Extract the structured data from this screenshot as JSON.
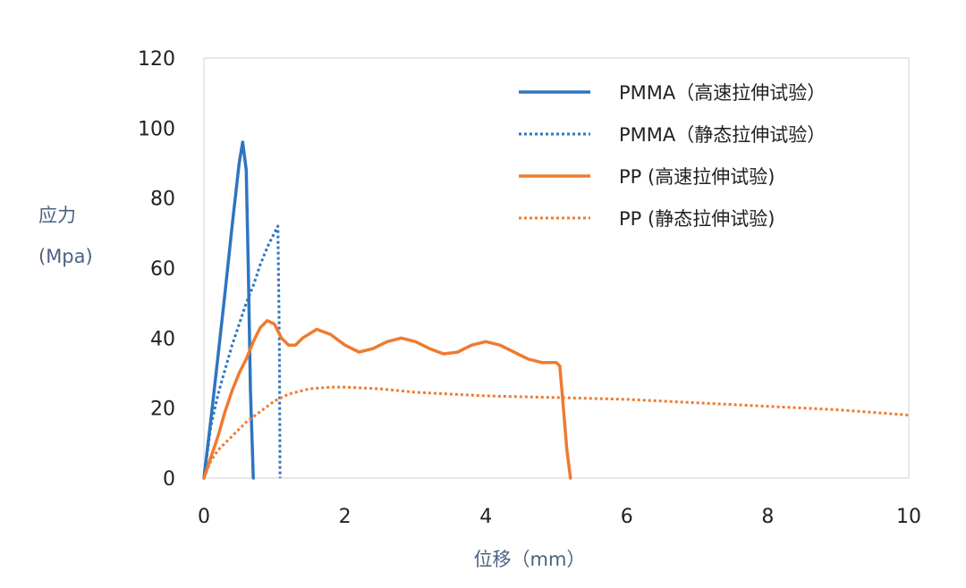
{
  "chart_data": {
    "type": "line",
    "ylabel_line1": "应力",
    "ylabel_line2": "(Mpa)",
    "xlabel": "位移（mm）",
    "xlim": [
      0,
      10
    ],
    "ylim": [
      0,
      120
    ],
    "xticks": [
      "0",
      "2",
      "4",
      "6",
      "8",
      "10"
    ],
    "yticks": [
      "0",
      "20",
      "40",
      "60",
      "80",
      "100",
      "120"
    ],
    "grid": false,
    "legend_position": "top-right",
    "series": [
      {
        "name": "PMMA（高速拉伸试验）",
        "color": "#2e75c0",
        "style": "solid",
        "points": [
          [
            0,
            0
          ],
          [
            0.1,
            17
          ],
          [
            0.2,
            35
          ],
          [
            0.3,
            53
          ],
          [
            0.4,
            72
          ],
          [
            0.5,
            90
          ],
          [
            0.55,
            96
          ],
          [
            0.6,
            88
          ],
          [
            0.63,
            60
          ],
          [
            0.66,
            25
          ],
          [
            0.7,
            0
          ]
        ]
      },
      {
        "name": "PMMA（静态拉伸试验）",
        "color": "#2e75c0",
        "style": "dotted",
        "points": [
          [
            0,
            0
          ],
          [
            0.1,
            15
          ],
          [
            0.2,
            24
          ],
          [
            0.3,
            31
          ],
          [
            0.4,
            38
          ],
          [
            0.5,
            44
          ],
          [
            0.6,
            50
          ],
          [
            0.7,
            55
          ],
          [
            0.8,
            61
          ],
          [
            0.9,
            66
          ],
          [
            1.0,
            70
          ],
          [
            1.05,
            72
          ],
          [
            1.07,
            40
          ],
          [
            1.08,
            0
          ]
        ]
      },
      {
        "name": "PP (高速拉伸试验)",
        "color": "#ee7b30",
        "style": "solid",
        "points": [
          [
            0,
            0
          ],
          [
            0.1,
            6
          ],
          [
            0.2,
            12
          ],
          [
            0.3,
            19
          ],
          [
            0.4,
            25
          ],
          [
            0.5,
            30
          ],
          [
            0.6,
            34
          ],
          [
            0.7,
            39
          ],
          [
            0.8,
            43
          ],
          [
            0.9,
            45
          ],
          [
            1.0,
            44
          ],
          [
            1.1,
            40
          ],
          [
            1.2,
            38
          ],
          [
            1.3,
            38
          ],
          [
            1.4,
            40
          ],
          [
            1.6,
            42.5
          ],
          [
            1.8,
            41
          ],
          [
            2.0,
            38
          ],
          [
            2.2,
            36
          ],
          [
            2.4,
            37
          ],
          [
            2.6,
            39
          ],
          [
            2.8,
            40
          ],
          [
            3.0,
            39
          ],
          [
            3.2,
            37
          ],
          [
            3.4,
            35.5
          ],
          [
            3.6,
            36
          ],
          [
            3.8,
            38
          ],
          [
            4.0,
            39
          ],
          [
            4.2,
            38
          ],
          [
            4.4,
            36
          ],
          [
            4.6,
            34
          ],
          [
            4.8,
            33
          ],
          [
            5.0,
            33
          ],
          [
            5.05,
            32
          ],
          [
            5.1,
            20
          ],
          [
            5.15,
            8
          ],
          [
            5.2,
            0
          ]
        ]
      },
      {
        "name": "PP (静态拉伸试验)",
        "color": "#ee7b30",
        "style": "dotted",
        "points": [
          [
            0,
            0
          ],
          [
            0.1,
            5
          ],
          [
            0.2,
            8
          ],
          [
            0.3,
            10
          ],
          [
            0.4,
            12
          ],
          [
            0.5,
            14
          ],
          [
            0.6,
            16
          ],
          [
            0.8,
            19
          ],
          [
            1.0,
            22
          ],
          [
            1.2,
            24
          ],
          [
            1.5,
            25.5
          ],
          [
            1.8,
            26
          ],
          [
            2.0,
            26
          ],
          [
            2.5,
            25.5
          ],
          [
            3.0,
            24.5
          ],
          [
            4.0,
            23.5
          ],
          [
            5.0,
            23
          ],
          [
            6.0,
            22.5
          ],
          [
            7.0,
            21.5
          ],
          [
            8.0,
            20.5
          ],
          [
            9.0,
            19.5
          ],
          [
            10.0,
            18
          ]
        ]
      }
    ]
  }
}
